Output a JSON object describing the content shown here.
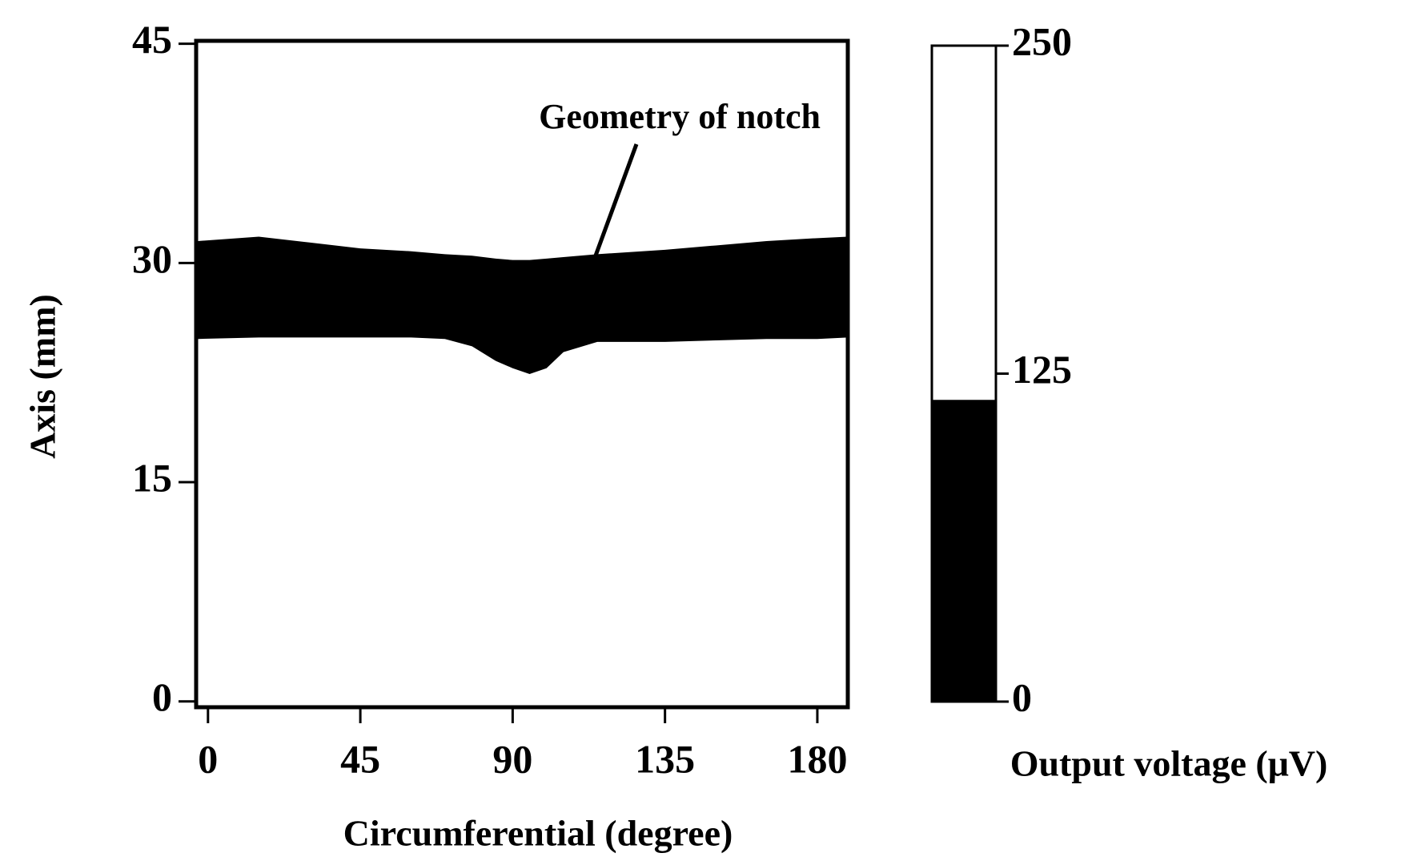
{
  "chart_data": {
    "type": "band",
    "x_label": "Circumferential (degree)",
    "y_label": "Axis (mm)",
    "annotation": "Geometry of notch",
    "x": [
      -3,
      15,
      30,
      45,
      60,
      70,
      78,
      85,
      90,
      95,
      100,
      105,
      115,
      135,
      150,
      165,
      180,
      189
    ],
    "upper": [
      31.5,
      31.8,
      31.4,
      31.0,
      30.8,
      30.6,
      30.5,
      30.3,
      30.2,
      30.2,
      30.3,
      30.4,
      30.6,
      30.9,
      31.2,
      31.5,
      31.7,
      31.8
    ],
    "lower": [
      24.8,
      24.9,
      24.9,
      24.9,
      24.9,
      24.8,
      24.3,
      23.3,
      22.8,
      22.4,
      22.8,
      23.9,
      24.6,
      24.6,
      24.7,
      24.8,
      24.8,
      24.9
    ],
    "color": "#000000",
    "xlim": [
      -3.5,
      189
    ],
    "xticks": [
      0,
      45,
      90,
      135,
      180
    ],
    "ylim": [
      -0.4,
      45.2
    ],
    "yticks": [
      0,
      15,
      30,
      45
    ],
    "colorbar": {
      "label": "Output voltage (μV)",
      "lim": [
        0,
        250
      ],
      "ticks": [
        0,
        125,
        250
      ],
      "threshold": 115
    }
  }
}
